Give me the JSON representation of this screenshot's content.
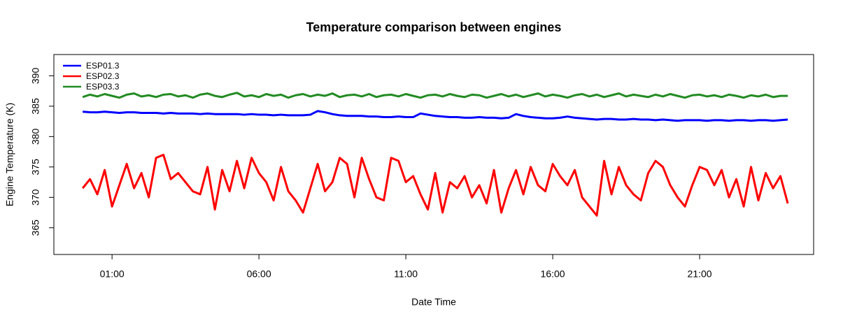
{
  "chart_data": {
    "type": "line",
    "title": "Temperature comparison between engines",
    "x_label": "Date Time",
    "y_label": "Engine Temperature (K)",
    "legend": "top-left",
    "x": [
      0,
      0.25,
      0.5,
      0.75,
      1,
      1.25,
      1.5,
      1.75,
      2,
      2.25,
      2.5,
      2.75,
      3,
      3.25,
      3.5,
      3.75,
      4,
      4.25,
      4.5,
      4.75,
      5,
      5.25,
      5.5,
      5.75,
      6,
      6.25,
      6.5,
      6.75,
      7,
      7.25,
      7.5,
      7.75,
      8,
      8.25,
      8.5,
      8.75,
      9,
      9.25,
      9.5,
      9.75,
      10,
      10.25,
      10.5,
      10.75,
      11,
      11.25,
      11.5,
      11.75,
      12,
      12.25,
      12.5,
      12.75,
      13,
      13.25,
      13.5,
      13.75,
      14,
      14.25,
      14.5,
      14.75,
      15,
      15.25,
      15.5,
      15.75,
      16,
      16.25,
      16.5,
      16.75,
      17,
      17.25,
      17.5,
      17.75,
      18,
      18.25,
      18.5,
      18.75,
      19,
      19.25,
      19.5,
      19.75,
      20,
      20.25,
      20.5,
      20.75,
      21,
      21.25,
      21.5,
      21.75,
      22,
      22.25,
      22.5,
      22.75,
      23,
      23.25,
      23.5,
      23.75,
      24
    ],
    "series": [
      {
        "name": "ESP01.3",
        "color": "#0000ff",
        "values": [
          384.1,
          384.0,
          384.0,
          384.1,
          384.0,
          383.9,
          384.0,
          384.0,
          383.9,
          383.9,
          383.9,
          383.8,
          383.9,
          383.8,
          383.8,
          383.8,
          383.7,
          383.8,
          383.7,
          383.7,
          383.7,
          383.7,
          383.6,
          383.7,
          383.6,
          383.6,
          383.5,
          383.6,
          383.5,
          383.5,
          383.5,
          383.6,
          384.2,
          384.0,
          383.7,
          383.5,
          383.4,
          383.4,
          383.4,
          383.3,
          383.3,
          383.2,
          383.2,
          383.3,
          383.2,
          383.2,
          383.8,
          383.6,
          383.4,
          383.3,
          383.2,
          383.2,
          383.1,
          383.1,
          383.2,
          383.1,
          383.1,
          383.0,
          383.1,
          383.7,
          383.4,
          383.2,
          383.1,
          383.0,
          383.0,
          383.1,
          383.3,
          383.1,
          383.0,
          382.9,
          382.8,
          382.9,
          382.9,
          382.8,
          382.8,
          382.9,
          382.8,
          382.8,
          382.7,
          382.8,
          382.7,
          382.6,
          382.7,
          382.7,
          382.7,
          382.6,
          382.7,
          382.7,
          382.6,
          382.7,
          382.7,
          382.6,
          382.7,
          382.7,
          382.6,
          382.7,
          382.8
        ]
      },
      {
        "name": "ESP02.3",
        "color": "#ff0000",
        "values": [
          371.5,
          373,
          370.5,
          374.5,
          368.5,
          372,
          375.5,
          371.5,
          374,
          370,
          376.5,
          377,
          373,
          374,
          372.5,
          371,
          370.5,
          375,
          368,
          374.5,
          371,
          376,
          371.5,
          376.5,
          374,
          372.5,
          369.5,
          375,
          371,
          369.5,
          367.5,
          371.5,
          375.5,
          371,
          372.5,
          376.5,
          375.5,
          370,
          376.5,
          373,
          370,
          369.5,
          376.5,
          376,
          372.5,
          373.5,
          370.5,
          368,
          374,
          367.5,
          372.5,
          371.5,
          373.5,
          370,
          372,
          369,
          374.5,
          367.5,
          371.5,
          374.5,
          370.5,
          375,
          372,
          371,
          375.5,
          373.5,
          372,
          374.5,
          370,
          368.5,
          367,
          376,
          370.5,
          375,
          372,
          370.5,
          369.5,
          374,
          376,
          375,
          372,
          370,
          368.5,
          372,
          375,
          374.5,
          372,
          374.5,
          370,
          373,
          368.5,
          375,
          369.5,
          374,
          371.5,
          373.5,
          369
        ]
      },
      {
        "name": "ESP03.3",
        "color": "#228b22",
        "values": [
          386.5,
          386.9,
          386.6,
          387.0,
          386.7,
          386.4,
          386.9,
          387.1,
          386.6,
          386.8,
          386.5,
          386.9,
          387.0,
          386.6,
          386.8,
          386.4,
          386.9,
          387.1,
          386.7,
          386.5,
          386.9,
          387.2,
          386.6,
          386.8,
          386.5,
          387.0,
          386.7,
          386.9,
          386.4,
          386.8,
          387.0,
          386.6,
          386.9,
          386.7,
          387.1,
          386.5,
          386.8,
          386.9,
          386.6,
          387.0,
          386.5,
          386.8,
          386.9,
          386.6,
          387.0,
          386.7,
          386.4,
          386.8,
          386.9,
          386.6,
          387.0,
          386.7,
          386.5,
          386.9,
          386.8,
          386.4,
          386.7,
          387.0,
          386.6,
          386.9,
          386.5,
          386.8,
          387.1,
          386.6,
          386.9,
          386.7,
          386.4,
          386.8,
          387.0,
          386.6,
          386.9,
          386.5,
          386.8,
          387.1,
          386.6,
          386.9,
          386.7,
          386.5,
          386.9,
          386.6,
          387.0,
          386.7,
          386.4,
          386.8,
          386.9,
          386.6,
          386.8,
          386.5,
          386.9,
          386.7,
          386.4,
          386.8,
          386.6,
          386.9,
          386.5,
          386.7,
          386.7
        ]
      }
    ],
    "xlim": [
      -0.98,
      24.88
    ],
    "ylim": [
      360.6,
      393.5
    ],
    "xticks": [
      {
        "value": 1,
        "label": "01:00"
      },
      {
        "value": 6,
        "label": "06:00"
      },
      {
        "value": 11,
        "label": "11:00"
      },
      {
        "value": 16,
        "label": "16:00"
      },
      {
        "value": 21,
        "label": "21:00"
      }
    ],
    "yticks": [
      365,
      370,
      375,
      380,
      385,
      390
    ],
    "grid": false
  }
}
